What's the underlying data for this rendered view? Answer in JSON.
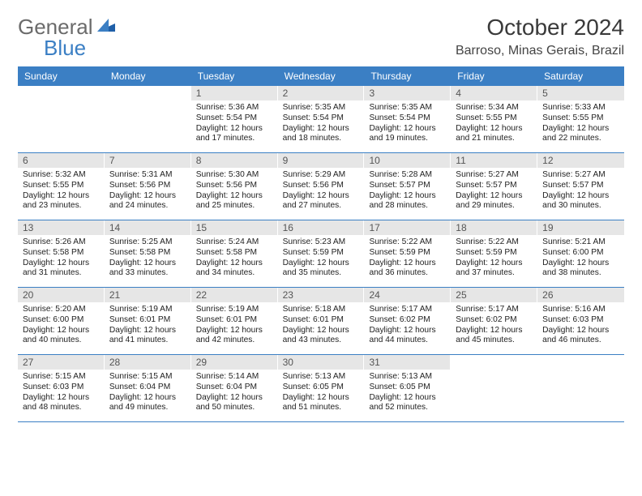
{
  "brand": {
    "text1": "General",
    "text2": "Blue"
  },
  "title": "October 2024",
  "location": "Barroso, Minas Gerais, Brazil",
  "colors": {
    "header_bg": "#3b7fc4",
    "header_text": "#ffffff",
    "daynum_bg": "#e6e6e6",
    "row_border": "#3b7fc4",
    "brand_gray": "#6b6b6b",
    "brand_blue": "#3b7fc4",
    "body_text": "#222222",
    "page_bg": "#ffffff"
  },
  "typography": {
    "title_fontsize": 28,
    "location_fontsize": 16,
    "dayhead_fontsize": 12,
    "cell_fontsize": 10.2
  },
  "layout": {
    "columns": 7,
    "rows": 5,
    "start_day_index": 2
  },
  "day_headers": [
    "Sunday",
    "Monday",
    "Tuesday",
    "Wednesday",
    "Thursday",
    "Friday",
    "Saturday"
  ],
  "cells": [
    {
      "blank": true
    },
    {
      "blank": true
    },
    {
      "day": "1",
      "sunrise": "Sunrise: 5:36 AM",
      "sunset": "Sunset: 5:54 PM",
      "daylight1": "Daylight: 12 hours",
      "daylight2": "and 17 minutes."
    },
    {
      "day": "2",
      "sunrise": "Sunrise: 5:35 AM",
      "sunset": "Sunset: 5:54 PM",
      "daylight1": "Daylight: 12 hours",
      "daylight2": "and 18 minutes."
    },
    {
      "day": "3",
      "sunrise": "Sunrise: 5:35 AM",
      "sunset": "Sunset: 5:54 PM",
      "daylight1": "Daylight: 12 hours",
      "daylight2": "and 19 minutes."
    },
    {
      "day": "4",
      "sunrise": "Sunrise: 5:34 AM",
      "sunset": "Sunset: 5:55 PM",
      "daylight1": "Daylight: 12 hours",
      "daylight2": "and 21 minutes."
    },
    {
      "day": "5",
      "sunrise": "Sunrise: 5:33 AM",
      "sunset": "Sunset: 5:55 PM",
      "daylight1": "Daylight: 12 hours",
      "daylight2": "and 22 minutes."
    },
    {
      "day": "6",
      "sunrise": "Sunrise: 5:32 AM",
      "sunset": "Sunset: 5:55 PM",
      "daylight1": "Daylight: 12 hours",
      "daylight2": "and 23 minutes."
    },
    {
      "day": "7",
      "sunrise": "Sunrise: 5:31 AM",
      "sunset": "Sunset: 5:56 PM",
      "daylight1": "Daylight: 12 hours",
      "daylight2": "and 24 minutes."
    },
    {
      "day": "8",
      "sunrise": "Sunrise: 5:30 AM",
      "sunset": "Sunset: 5:56 PM",
      "daylight1": "Daylight: 12 hours",
      "daylight2": "and 25 minutes."
    },
    {
      "day": "9",
      "sunrise": "Sunrise: 5:29 AM",
      "sunset": "Sunset: 5:56 PM",
      "daylight1": "Daylight: 12 hours",
      "daylight2": "and 27 minutes."
    },
    {
      "day": "10",
      "sunrise": "Sunrise: 5:28 AM",
      "sunset": "Sunset: 5:57 PM",
      "daylight1": "Daylight: 12 hours",
      "daylight2": "and 28 minutes."
    },
    {
      "day": "11",
      "sunrise": "Sunrise: 5:27 AM",
      "sunset": "Sunset: 5:57 PM",
      "daylight1": "Daylight: 12 hours",
      "daylight2": "and 29 minutes."
    },
    {
      "day": "12",
      "sunrise": "Sunrise: 5:27 AM",
      "sunset": "Sunset: 5:57 PM",
      "daylight1": "Daylight: 12 hours",
      "daylight2": "and 30 minutes."
    },
    {
      "day": "13",
      "sunrise": "Sunrise: 5:26 AM",
      "sunset": "Sunset: 5:58 PM",
      "daylight1": "Daylight: 12 hours",
      "daylight2": "and 31 minutes."
    },
    {
      "day": "14",
      "sunrise": "Sunrise: 5:25 AM",
      "sunset": "Sunset: 5:58 PM",
      "daylight1": "Daylight: 12 hours",
      "daylight2": "and 33 minutes."
    },
    {
      "day": "15",
      "sunrise": "Sunrise: 5:24 AM",
      "sunset": "Sunset: 5:58 PM",
      "daylight1": "Daylight: 12 hours",
      "daylight2": "and 34 minutes."
    },
    {
      "day": "16",
      "sunrise": "Sunrise: 5:23 AM",
      "sunset": "Sunset: 5:59 PM",
      "daylight1": "Daylight: 12 hours",
      "daylight2": "and 35 minutes."
    },
    {
      "day": "17",
      "sunrise": "Sunrise: 5:22 AM",
      "sunset": "Sunset: 5:59 PM",
      "daylight1": "Daylight: 12 hours",
      "daylight2": "and 36 minutes."
    },
    {
      "day": "18",
      "sunrise": "Sunrise: 5:22 AM",
      "sunset": "Sunset: 5:59 PM",
      "daylight1": "Daylight: 12 hours",
      "daylight2": "and 37 minutes."
    },
    {
      "day": "19",
      "sunrise": "Sunrise: 5:21 AM",
      "sunset": "Sunset: 6:00 PM",
      "daylight1": "Daylight: 12 hours",
      "daylight2": "and 38 minutes."
    },
    {
      "day": "20",
      "sunrise": "Sunrise: 5:20 AM",
      "sunset": "Sunset: 6:00 PM",
      "daylight1": "Daylight: 12 hours",
      "daylight2": "and 40 minutes."
    },
    {
      "day": "21",
      "sunrise": "Sunrise: 5:19 AM",
      "sunset": "Sunset: 6:01 PM",
      "daylight1": "Daylight: 12 hours",
      "daylight2": "and 41 minutes."
    },
    {
      "day": "22",
      "sunrise": "Sunrise: 5:19 AM",
      "sunset": "Sunset: 6:01 PM",
      "daylight1": "Daylight: 12 hours",
      "daylight2": "and 42 minutes."
    },
    {
      "day": "23",
      "sunrise": "Sunrise: 5:18 AM",
      "sunset": "Sunset: 6:01 PM",
      "daylight1": "Daylight: 12 hours",
      "daylight2": "and 43 minutes."
    },
    {
      "day": "24",
      "sunrise": "Sunrise: 5:17 AM",
      "sunset": "Sunset: 6:02 PM",
      "daylight1": "Daylight: 12 hours",
      "daylight2": "and 44 minutes."
    },
    {
      "day": "25",
      "sunrise": "Sunrise: 5:17 AM",
      "sunset": "Sunset: 6:02 PM",
      "daylight1": "Daylight: 12 hours",
      "daylight2": "and 45 minutes."
    },
    {
      "day": "26",
      "sunrise": "Sunrise: 5:16 AM",
      "sunset": "Sunset: 6:03 PM",
      "daylight1": "Daylight: 12 hours",
      "daylight2": "and 46 minutes."
    },
    {
      "day": "27",
      "sunrise": "Sunrise: 5:15 AM",
      "sunset": "Sunset: 6:03 PM",
      "daylight1": "Daylight: 12 hours",
      "daylight2": "and 48 minutes."
    },
    {
      "day": "28",
      "sunrise": "Sunrise: 5:15 AM",
      "sunset": "Sunset: 6:04 PM",
      "daylight1": "Daylight: 12 hours",
      "daylight2": "and 49 minutes."
    },
    {
      "day": "29",
      "sunrise": "Sunrise: 5:14 AM",
      "sunset": "Sunset: 6:04 PM",
      "daylight1": "Daylight: 12 hours",
      "daylight2": "and 50 minutes."
    },
    {
      "day": "30",
      "sunrise": "Sunrise: 5:13 AM",
      "sunset": "Sunset: 6:05 PM",
      "daylight1": "Daylight: 12 hours",
      "daylight2": "and 51 minutes."
    },
    {
      "day": "31",
      "sunrise": "Sunrise: 5:13 AM",
      "sunset": "Sunset: 6:05 PM",
      "daylight1": "Daylight: 12 hours",
      "daylight2": "and 52 minutes."
    },
    {
      "blank": true
    },
    {
      "blank": true
    }
  ]
}
